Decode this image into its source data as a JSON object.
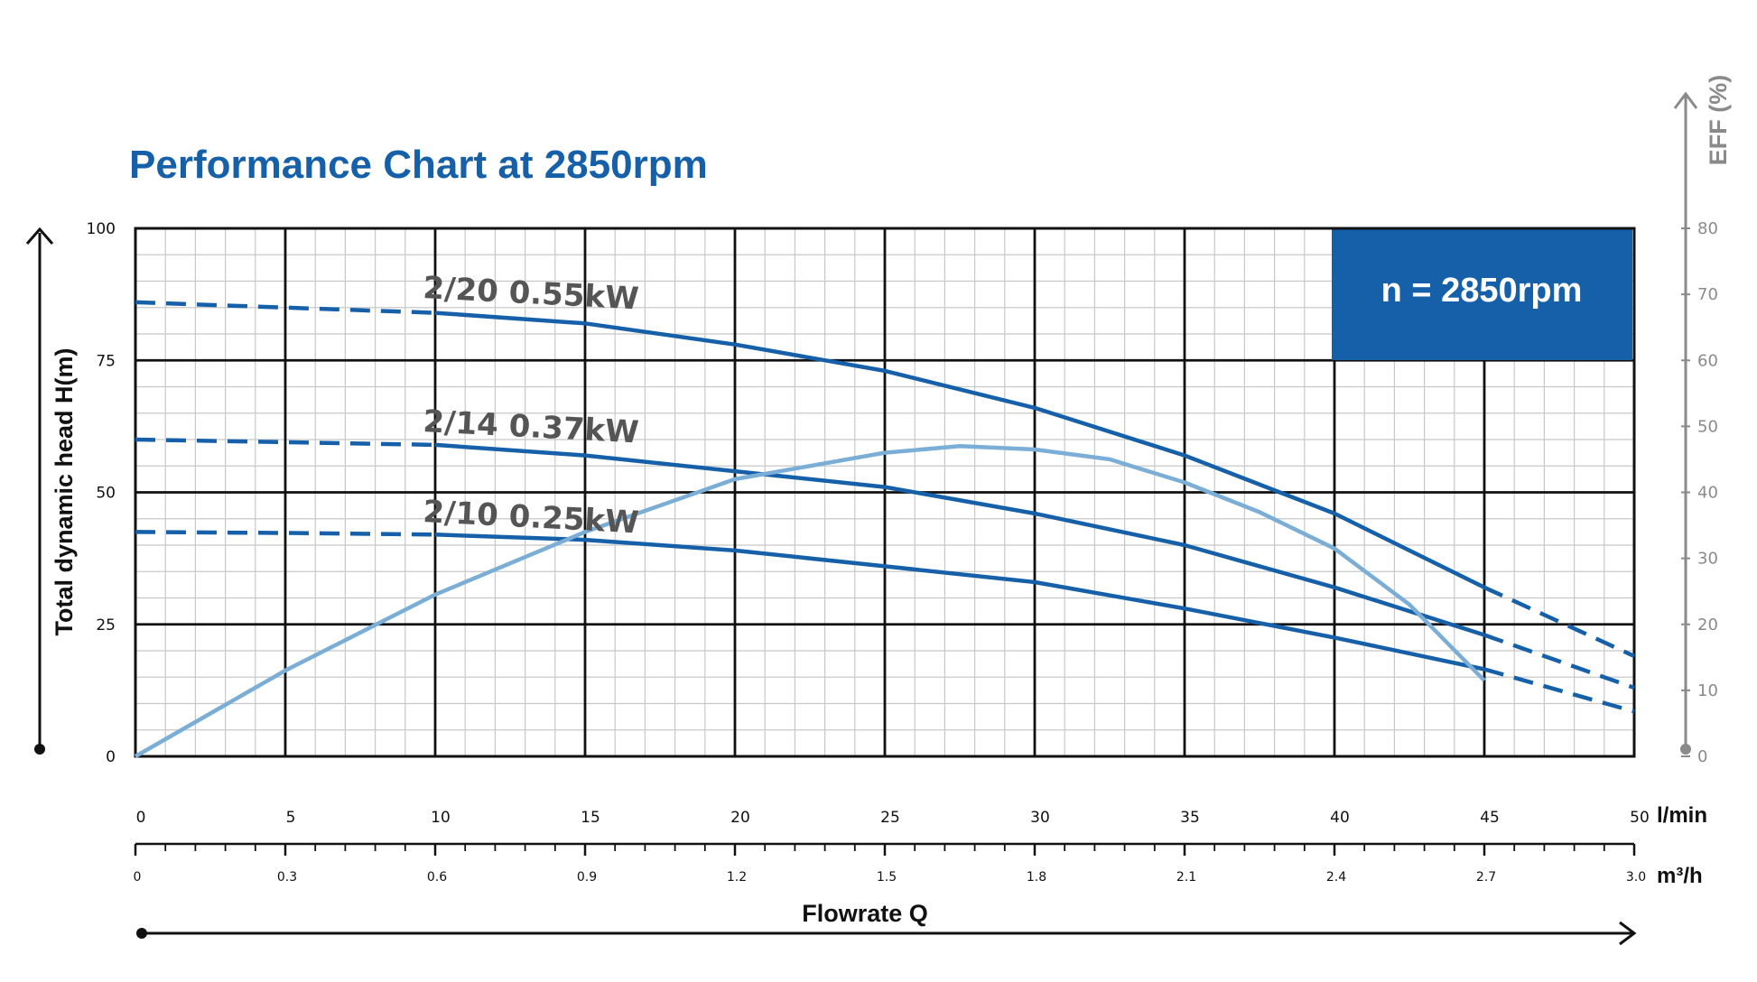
{
  "chart_data": {
    "type": "line",
    "title": "Performance Chart at 2850rpm",
    "speed_box": "n = 2850rpm",
    "ylabel": "Total dynamic head H(m)",
    "ylim": [
      0,
      100
    ],
    "y_ticks": [
      0,
      25,
      50,
      75,
      100
    ],
    "y2label": "EFF (%)",
    "y2lim": [
      0,
      80
    ],
    "y2_ticks": [
      0,
      10,
      20,
      30,
      40,
      50,
      60,
      70,
      80
    ],
    "xlabel": "Flowrate Q",
    "xlim": [
      0,
      50
    ],
    "x_unit": "l/min",
    "x_ticks": [
      0,
      5,
      10,
      15,
      20,
      25,
      30,
      35,
      40,
      45,
      50
    ],
    "x2_unit": "m³/h",
    "x2_ticks": [
      "0",
      "0.3",
      "0.6",
      "0.9",
      "1.2",
      "1.5",
      "1.8",
      "2.1",
      "2.4",
      "2.7",
      "3.0"
    ],
    "grid": true,
    "series": [
      {
        "name": "2/20 0.55kW",
        "color": "#1560a8",
        "points": [
          [
            0,
            86
          ],
          [
            5,
            85
          ],
          [
            10,
            84
          ],
          [
            15,
            82
          ],
          [
            20,
            78
          ],
          [
            25,
            73
          ],
          [
            30,
            66
          ],
          [
            35,
            57
          ],
          [
            40,
            46
          ],
          [
            45,
            32
          ],
          [
            50,
            19
          ]
        ],
        "solid_range": [
          10,
          45
        ]
      },
      {
        "name": "2/14 0.37kW",
        "color": "#1560a8",
        "points": [
          [
            0,
            60
          ],
          [
            5,
            59.5
          ],
          [
            10,
            59
          ],
          [
            15,
            57
          ],
          [
            20,
            54
          ],
          [
            25,
            51
          ],
          [
            30,
            46
          ],
          [
            35,
            40
          ],
          [
            40,
            32
          ],
          [
            45,
            23
          ],
          [
            50,
            13
          ]
        ],
        "solid_range": [
          10,
          45
        ]
      },
      {
        "name": "2/10 0.25kW",
        "color": "#1560a8",
        "points": [
          [
            0,
            42.5
          ],
          [
            5,
            42.3
          ],
          [
            10,
            42
          ],
          [
            15,
            41
          ],
          [
            20,
            39
          ],
          [
            25,
            36
          ],
          [
            30,
            33
          ],
          [
            35,
            28
          ],
          [
            40,
            22.5
          ],
          [
            45,
            16.5
          ],
          [
            50,
            8.5
          ]
        ],
        "solid_range": [
          10,
          45
        ]
      },
      {
        "name": "EFF",
        "color": "#7aaed6",
        "axis": "eff",
        "points": [
          [
            0,
            0
          ],
          [
            5,
            13
          ],
          [
            10,
            24.5
          ],
          [
            15,
            34
          ],
          [
            20,
            42
          ],
          [
            25,
            46
          ],
          [
            27.5,
            47
          ],
          [
            30,
            46.5
          ],
          [
            32.5,
            45
          ],
          [
            35,
            41.5
          ],
          [
            37.5,
            37
          ],
          [
            40,
            31.5
          ],
          [
            42.5,
            23
          ],
          [
            45,
            11.5
          ]
        ]
      }
    ]
  }
}
